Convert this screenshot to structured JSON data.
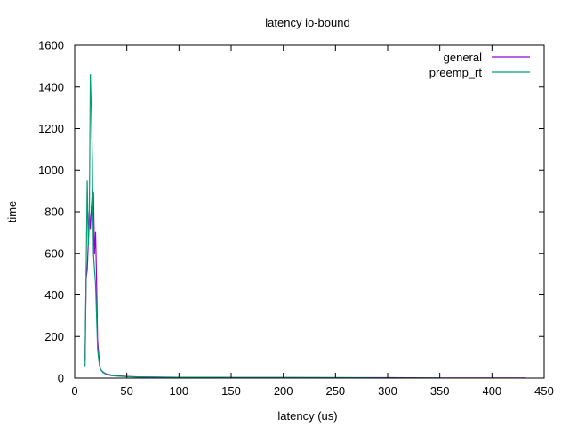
{
  "chart_data": {
    "type": "line",
    "title": "latency io-bound",
    "xlabel": "latency (us)",
    "ylabel": "time",
    "xlim": [
      0,
      450
    ],
    "ylim": [
      0,
      1600
    ],
    "xticks": [
      "0",
      "50",
      "100",
      "150",
      "200",
      "250",
      "300",
      "350",
      "400",
      "450"
    ],
    "yticks": [
      "0",
      "200",
      "400",
      "600",
      "800",
      "1000",
      "1200",
      "1400",
      "1600"
    ],
    "legend_position": "top-right",
    "grid": false,
    "series": [
      {
        "name": "general",
        "color": "#9400d3",
        "x": [
          10,
          11,
          12,
          13,
          14,
          15,
          16,
          17,
          18,
          19,
          20,
          21,
          22,
          23,
          24,
          25,
          27,
          30,
          35,
          40,
          50,
          60,
          80,
          100,
          150,
          200,
          250,
          300,
          350,
          400,
          432
        ],
        "y": [
          90,
          480,
          520,
          650,
          800,
          720,
          820,
          900,
          890,
          600,
          700,
          480,
          180,
          120,
          60,
          40,
          30,
          20,
          15,
          12,
          8,
          6,
          5,
          4,
          3,
          3,
          2,
          2,
          1,
          1,
          1
        ]
      },
      {
        "name": "preemp_rt",
        "color": "#009e73",
        "x": [
          10,
          11,
          12,
          13,
          14,
          15,
          16,
          17,
          18,
          19,
          20,
          21,
          22,
          23,
          24,
          25,
          27,
          30,
          35,
          40,
          50,
          60,
          80,
          100,
          150,
          200,
          250,
          300,
          350
        ],
        "y": [
          60,
          520,
          950,
          640,
          740,
          1460,
          1280,
          1050,
          600,
          520,
          450,
          300,
          140,
          90,
          55,
          40,
          28,
          18,
          12,
          10,
          7,
          5,
          4,
          4,
          3,
          3,
          2,
          1,
          1
        ]
      }
    ]
  }
}
